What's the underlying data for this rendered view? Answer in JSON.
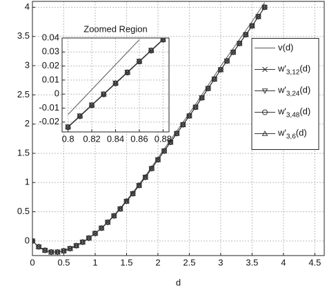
{
  "chart_data": [
    {
      "type": "line",
      "xlabel": "d",
      "x": [
        0,
        0.1,
        0.2,
        0.3,
        0.4,
        0.5,
        0.6,
        0.7,
        0.8,
        0.9,
        1.0,
        1.1,
        1.2,
        1.3,
        1.4,
        1.5,
        1.6,
        1.7,
        1.8,
        1.9,
        2.0,
        2.1,
        2.2,
        2.3,
        2.4,
        2.5,
        2.6,
        2.7,
        2.8,
        2.9,
        3.0,
        3.1,
        3.2,
        3.3,
        3.4,
        3.5,
        3.6,
        3.7
      ],
      "series": [
        {
          "name": "v(d)",
          "color": "#555555",
          "marker": "none",
          "values": [
            0,
            -0.1,
            -0.16,
            -0.19,
            -0.19,
            -0.17,
            -0.13,
            -0.08,
            -0.02,
            0.05,
            0.13,
            0.223,
            0.326,
            0.439,
            0.562,
            0.695,
            0.828,
            0.971,
            1.114,
            1.267,
            1.42,
            1.573,
            1.726,
            1.879,
            2.032,
            2.185,
            2.338,
            2.501,
            2.664,
            2.827,
            2.99,
            3.143,
            3.296,
            3.449,
            3.602,
            3.755,
            3.918,
            4.081
          ]
        },
        {
          "name": "w'3,12(d)",
          "color": "#333333",
          "marker": "x",
          "values": [
            0,
            -0.1,
            -0.16,
            -0.19,
            -0.19,
            -0.17,
            -0.13,
            -0.08,
            -0.02,
            0.05,
            0.13,
            0.22,
            0.32,
            0.43,
            0.55,
            0.68,
            0.81,
            0.95,
            1.09,
            1.24,
            1.39,
            1.54,
            1.69,
            1.84,
            1.99,
            2.14,
            2.29,
            2.45,
            2.61,
            2.77,
            2.93,
            3.08,
            3.23,
            3.38,
            3.53,
            3.68,
            3.84,
            4.0
          ]
        },
        {
          "name": "w'3,24(d)",
          "color": "#333333",
          "marker": "triangle-down",
          "values": [
            0,
            -0.1,
            -0.16,
            -0.19,
            -0.19,
            -0.17,
            -0.13,
            -0.08,
            -0.02,
            0.05,
            0.13,
            0.22,
            0.32,
            0.43,
            0.55,
            0.68,
            0.81,
            0.95,
            1.09,
            1.24,
            1.39,
            1.54,
            1.69,
            1.84,
            1.99,
            2.14,
            2.29,
            2.45,
            2.61,
            2.77,
            2.93,
            3.08,
            3.23,
            3.38,
            3.53,
            3.68,
            3.84,
            4.0
          ]
        },
        {
          "name": "w'3,48(d)",
          "color": "#333333",
          "marker": "circle",
          "values": [
            0,
            -0.1,
            -0.16,
            -0.19,
            -0.19,
            -0.17,
            -0.13,
            -0.08,
            -0.02,
            0.05,
            0.13,
            0.22,
            0.32,
            0.43,
            0.55,
            0.68,
            0.81,
            0.95,
            1.09,
            1.24,
            1.39,
            1.54,
            1.69,
            1.84,
            1.99,
            2.14,
            2.29,
            2.45,
            2.61,
            2.77,
            2.93,
            3.08,
            3.23,
            3.38,
            3.53,
            3.68,
            3.84,
            4.0
          ]
        },
        {
          "name": "w'3,6(d)",
          "color": "#333333",
          "marker": "triangle-up",
          "values": [
            0,
            -0.1,
            -0.16,
            -0.19,
            -0.19,
            -0.17,
            -0.13,
            -0.08,
            -0.02,
            0.05,
            0.13,
            0.22,
            0.32,
            0.43,
            0.55,
            0.68,
            0.81,
            0.95,
            1.09,
            1.24,
            1.39,
            1.54,
            1.69,
            1.84,
            1.99,
            2.14,
            2.29,
            2.45,
            2.61,
            2.77,
            2.93,
            3.08,
            3.23,
            3.38,
            3.53,
            3.68,
            3.84,
            4.0
          ]
        }
      ],
      "xlim": [
        0,
        4.65
      ],
      "ylim": [
        -0.25,
        4.1
      ],
      "xticks": [
        0,
        0.5,
        1,
        1.5,
        2,
        2.5,
        3,
        3.5,
        4,
        4.5
      ],
      "yticks": [
        0,
        0.5,
        1,
        1.5,
        2,
        2.5,
        3,
        3.5,
        4
      ],
      "grid": true,
      "legend": "right"
    },
    {
      "type": "line",
      "title": "Zoomed Region",
      "x": [
        0.8,
        0.81,
        0.82,
        0.83,
        0.84,
        0.85,
        0.86,
        0.87,
        0.88
      ],
      "series": [
        {
          "color": "#555555",
          "marker": "none",
          "values": [
            -0.0146,
            -0.0057,
            0.0032,
            0.0121,
            0.021,
            0.0299,
            0.0388,
            null,
            null
          ]
        },
        {
          "color": "#333333",
          "marker": "x",
          "values": [
            -0.0235,
            -0.0157,
            -0.0079,
            -0.0001,
            0.0077,
            0.0155,
            0.0233,
            0.0311,
            0.0389
          ]
        },
        {
          "color": "#333333",
          "marker": "triangle-down",
          "values": [
            -0.0233,
            -0.0155,
            -0.0077,
            0.0001,
            0.0079,
            0.0157,
            0.0235,
            0.0313,
            0.0391
          ]
        },
        {
          "color": "#333333",
          "marker": "circle",
          "values": [
            -0.0237,
            -0.0159,
            -0.0081,
            -0.0003,
            0.0075,
            0.0153,
            0.0231,
            0.0309,
            0.0387
          ]
        },
        {
          "color": "#333333",
          "marker": "triangle-up",
          "values": [
            -0.0234,
            -0.0156,
            -0.0078,
            0,
            0.0078,
            0.0156,
            0.0234,
            0.0312,
            0.039
          ]
        }
      ],
      "xlim": [
        0.795,
        0.885
      ],
      "ylim": [
        -0.027,
        0.04
      ],
      "xticks": [
        0.8,
        0.82,
        0.84,
        0.86,
        0.88
      ],
      "yticks": [
        -0.02,
        -0.01,
        0,
        0.01,
        0.02,
        0.03,
        0.04
      ],
      "grid": true
    }
  ]
}
